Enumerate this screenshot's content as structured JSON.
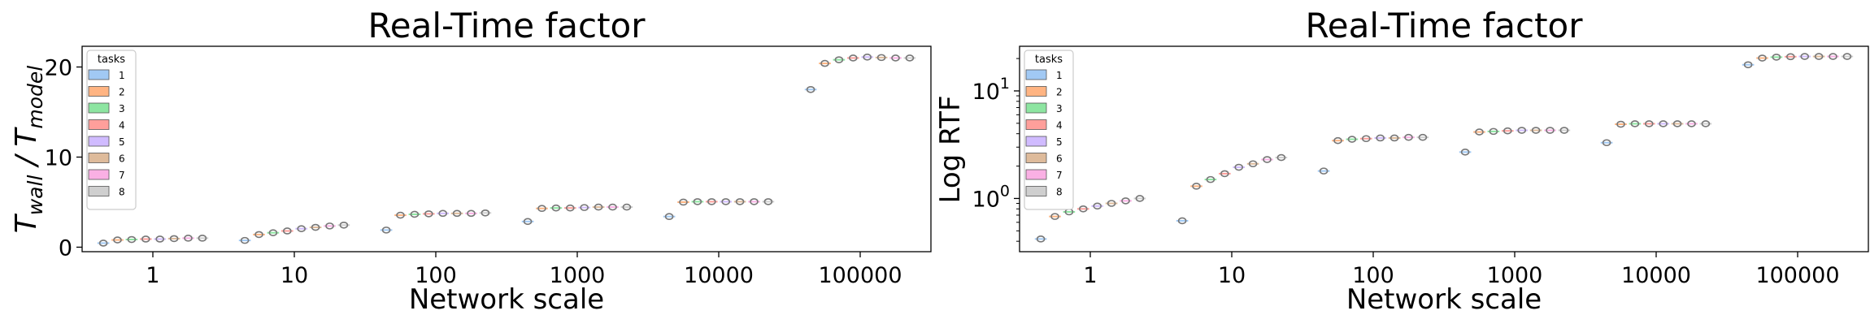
{
  "chart_data": [
    {
      "type": "box",
      "title": "Real-Time factor",
      "xlabel": "Network scale",
      "ylabel_main": "T",
      "ylabel_sub1": "wall",
      "ylabel_mid": " / T",
      "ylabel_sub2": "model",
      "yscale": "linear",
      "ylim": [
        -0.5,
        22.3
      ],
      "yticks": [
        0,
        10,
        20
      ],
      "ytick_labels": [
        "0",
        "10",
        "20"
      ],
      "categories": [
        "1",
        "10",
        "100",
        "1000",
        "10000",
        "100000"
      ],
      "legend": {
        "title": "tasks",
        "position": "top-left",
        "entries": [
          "1",
          "2",
          "3",
          "4",
          "5",
          "6",
          "7",
          "8"
        ],
        "colors": [
          "#a1c9f4",
          "#ffb482",
          "#8de5a1",
          "#ff9f9b",
          "#d0bbff",
          "#debb9b",
          "#fab0e4",
          "#cfcfcf"
        ]
      },
      "series": [
        {
          "task": "1",
          "values": [
            0.45,
            0.75,
            1.9,
            2.85,
            3.4,
            17.5
          ]
        },
        {
          "task": "2",
          "values": [
            0.8,
            1.4,
            3.55,
            4.3,
            5.0,
            20.4
          ]
        },
        {
          "task": "3",
          "values": [
            0.85,
            1.6,
            3.65,
            4.35,
            5.05,
            20.8
          ]
        },
        {
          "task": "4",
          "values": [
            0.9,
            1.8,
            3.7,
            4.35,
            5.05,
            21.0
          ]
        },
        {
          "task": "5",
          "values": [
            0.9,
            2.05,
            3.75,
            4.4,
            5.05,
            21.1
          ]
        },
        {
          "task": "6",
          "values": [
            0.95,
            2.2,
            3.75,
            4.45,
            5.05,
            21.05
          ]
        },
        {
          "task": "7",
          "values": [
            1.0,
            2.35,
            3.75,
            4.45,
            5.05,
            21.0
          ]
        },
        {
          "task": "8",
          "values": [
            1.0,
            2.45,
            3.8,
            4.45,
            5.05,
            21.0
          ]
        }
      ]
    },
    {
      "type": "box",
      "title": "Real-Time factor",
      "xlabel": "Network scale",
      "ylabel": "Log RTF",
      "yscale": "log",
      "ylim": [
        0.32,
        26
      ],
      "yticks": [
        1,
        10
      ],
      "ytick_base": "10",
      "ytick_exponents": [
        "0",
        "1"
      ],
      "categories": [
        "1",
        "10",
        "100",
        "1000",
        "10000",
        "100000"
      ],
      "legend": {
        "title": "tasks",
        "position": "top-left",
        "entries": [
          "1",
          "2",
          "3",
          "4",
          "5",
          "6",
          "7",
          "8"
        ],
        "colors": [
          "#a1c9f4",
          "#ffb482",
          "#8de5a1",
          "#ff9f9b",
          "#d0bbff",
          "#debb9b",
          "#fab0e4",
          "#cfcfcf"
        ]
      },
      "series": [
        {
          "task": "1",
          "values": [
            0.42,
            0.62,
            1.8,
            2.7,
            3.3,
            17.5
          ]
        },
        {
          "task": "2",
          "values": [
            0.68,
            1.3,
            3.45,
            4.15,
            4.9,
            20.2
          ]
        },
        {
          "task": "3",
          "values": [
            0.75,
            1.5,
            3.55,
            4.2,
            4.95,
            20.6
          ]
        },
        {
          "task": "4",
          "values": [
            0.8,
            1.7,
            3.6,
            4.25,
            4.95,
            20.8
          ]
        },
        {
          "task": "5",
          "values": [
            0.85,
            1.95,
            3.65,
            4.3,
            4.95,
            20.9
          ]
        },
        {
          "task": "6",
          "values": [
            0.9,
            2.1,
            3.65,
            4.3,
            4.95,
            20.9
          ]
        },
        {
          "task": "7",
          "values": [
            0.95,
            2.3,
            3.7,
            4.3,
            4.95,
            20.9
          ]
        },
        {
          "task": "8",
          "values": [
            1.0,
            2.4,
            3.7,
            4.3,
            4.95,
            20.9
          ]
        }
      ]
    }
  ]
}
